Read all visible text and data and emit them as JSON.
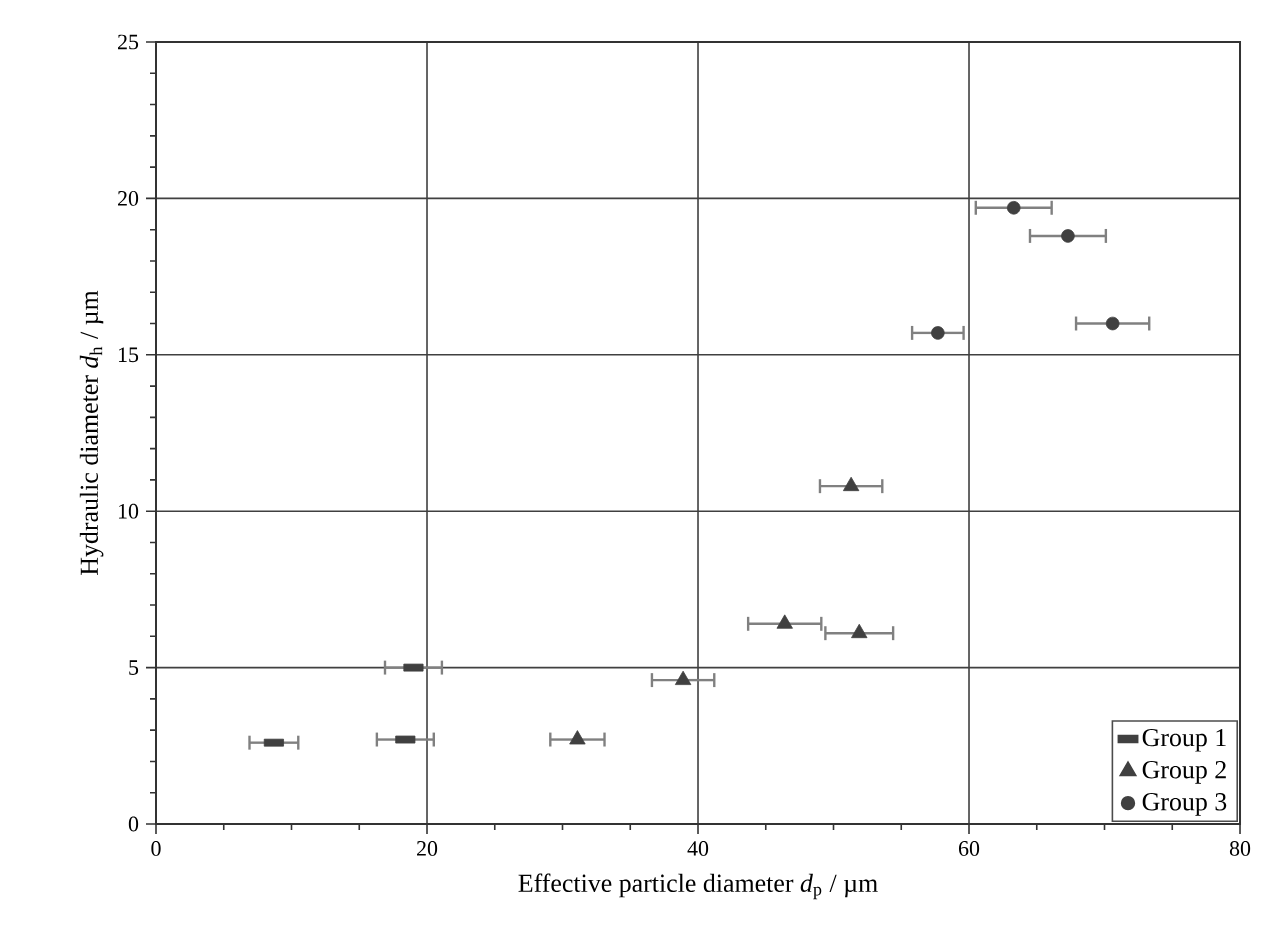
{
  "chart_data": {
    "type": "scatter",
    "xlabel": "Effective particle diameter *d*$_{p}$ / µm",
    "ylabel": "Hydraulic diameter *d*$_{h}$ / µm",
    "xlim": [
      0,
      80
    ],
    "ylim": [
      0,
      25
    ],
    "xticks": [
      0,
      20,
      40,
      60,
      80
    ],
    "yticks": [
      0,
      5,
      10,
      15,
      20,
      25
    ],
    "grid": true,
    "legend": "bottom right",
    "series": [
      {
        "name": "Group 1",
        "color": "#404040",
        "marker": "square",
        "x": [
          8.7,
          18.4,
          19.0
        ],
        "values": [
          2.6,
          2.7,
          5.0
        ],
        "xerrors": [
          1.8,
          2.1,
          2.1
        ]
      },
      {
        "name": "Group 2",
        "color": "#404040",
        "marker": "triangle",
        "x": [
          31.1,
          38.9,
          46.4,
          51.9,
          51.3
        ],
        "values": [
          2.7,
          4.6,
          6.4,
          6.1,
          10.8
        ],
        "xerrors": [
          2.0,
          2.3,
          2.7,
          2.5,
          2.3
        ]
      },
      {
        "name": "Group 3",
        "color": "#404040",
        "marker": "circle",
        "x": [
          63.3,
          67.3,
          70.6,
          57.7
        ],
        "values": [
          19.7,
          18.8,
          16.0,
          15.7
        ],
        "xerrors": [
          2.8,
          2.8,
          2.7,
          1.9
        ]
      }
    ]
  }
}
